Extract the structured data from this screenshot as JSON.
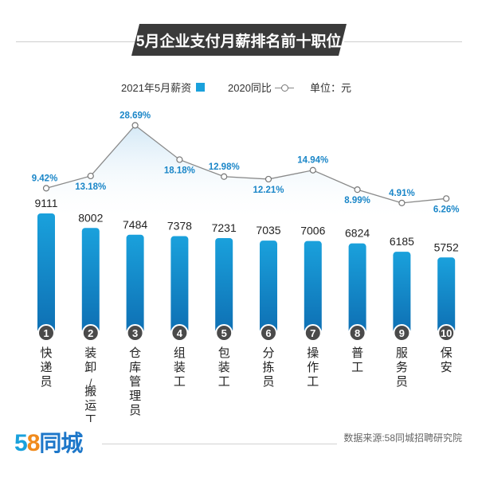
{
  "title": "5月企业支付月薪排名前十职位",
  "legend": {
    "salary_label": "2021年5月薪资",
    "yoy_label": "2020同比",
    "unit_label": "单位：元"
  },
  "colors": {
    "bar": "#1aa1dc",
    "bar_dark": "#0e6fb3",
    "line": "#8a8a8a",
    "pct_text": "#1a86c8",
    "circle": "#4a4a4a"
  },
  "chart_data": {
    "type": "bar",
    "categories": [
      "快递员",
      "装卸/搬运工",
      "仓库管理员",
      "组装工",
      "包装工",
      "分拣员",
      "操作工",
      "普工",
      "服务员",
      "保安"
    ],
    "ranks": [
      "1",
      "2",
      "3",
      "4",
      "5",
      "6",
      "7",
      "8",
      "9",
      "10"
    ],
    "series": [
      {
        "name": "2021年5月薪资",
        "type": "bar",
        "values": [
          9111,
          8002,
          7484,
          7378,
          7231,
          7035,
          7006,
          6824,
          6185,
          5752
        ],
        "labels": [
          "9111",
          "8002",
          "7484",
          "7378",
          "7231",
          "7035",
          "7006",
          "6824",
          "6185",
          "5752"
        ]
      },
      {
        "name": "2020同比",
        "type": "line",
        "values": [
          9.42,
          13.18,
          28.69,
          18.18,
          12.98,
          12.21,
          14.94,
          8.99,
          4.91,
          6.26
        ],
        "labels": [
          "9.42%",
          "13.18%",
          "28.69%",
          "18.18%",
          "12.98%",
          "12.21%",
          "14.94%",
          "8.99%",
          "4.91%",
          "6.26%"
        ]
      }
    ],
    "ylabel": "",
    "grid": false
  },
  "footer": {
    "logo_58": "58",
    "logo_text": "同城",
    "source": "数据来源:58同城招聘研究院"
  }
}
